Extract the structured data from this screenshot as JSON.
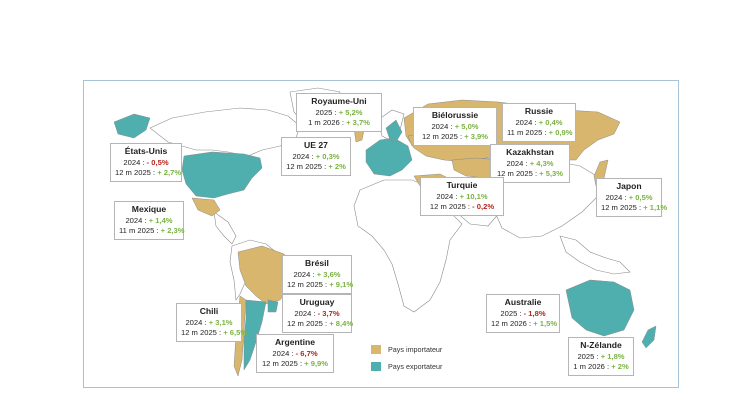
{
  "colors": {
    "importer": "#d8b66e",
    "exporter": "#4eafae",
    "land": "#ffffff",
    "border": "#8c8c8c",
    "frame": "#a9c3d6",
    "positive": "#7ab342",
    "negative": "#b8241c"
  },
  "legend": {
    "importer": "Pays importateur",
    "exporter": "Pays exportateur"
  },
  "labels": {
    "uk": {
      "name": "Royaume-Uni",
      "l1": "2025 : ",
      "v1": "+ 5,2%",
      "l2": "1 m 2026 : ",
      "v2": "+ 3,7%"
    },
    "by": {
      "name": "Biélorussie",
      "l1": "2024 : ",
      "v1": "+ 5,0%",
      "l2": "12 m 2025 : ",
      "v2": "+ 3,9%"
    },
    "ru": {
      "name": "Russie",
      "l1": "2024 : ",
      "v1": "+ 0,4%",
      "l2": "11 m 2025 : ",
      "v2": "+ 0,9%"
    },
    "us": {
      "name": "États-Unis",
      "l1": "2024 : ",
      "v1": "- 0,5%",
      "l2": "12 m 2025 : ",
      "v2": "+ 2,7%"
    },
    "eu": {
      "name": "UE 27",
      "l1": "2024 : ",
      "v1": "+ 0,3%",
      "l2": "12 m 2025 : ",
      "v2": "+ 2%"
    },
    "kz": {
      "name": "Kazakhstan",
      "l1": "2024 : ",
      "v1": "+ 4,3%",
      "l2": "12 m 2025 : ",
      "v2": "+ 5,3%"
    },
    "tr": {
      "name": "Turquie",
      "l1": "2024 : ",
      "v1": "+ 10,1%",
      "l2": "12 m 2025 : ",
      "v2": "- 0,2%"
    },
    "jp": {
      "name": "Japon",
      "l1": "2024 : ",
      "v1": "+ 0,5%",
      "l2": "12 m 2025 : ",
      "v2": "+ 1,1%"
    },
    "mx": {
      "name": "Mexique",
      "l1": "2024 : ",
      "v1": "+ 1,4%",
      "l2": "11 m 2025 : ",
      "v2": "+ 2,3%"
    },
    "br": {
      "name": "Brésil",
      "l1": "2024 : ",
      "v1": "+ 3,6%",
      "l2": "12 m 2025 : ",
      "v2": "+ 9,1%"
    },
    "uy": {
      "name": "Uruguay",
      "l1": "2024 : ",
      "v1": "- 3,7%",
      "l2": "12 m 2025 : ",
      "v2": "+ 8,4%"
    },
    "cl": {
      "name": "Chili",
      "l1": "2024 : ",
      "v1": "+ 3,1%",
      "l2": "12 m 2025 : ",
      "v2": "+ 6,5%"
    },
    "ar": {
      "name": "Argentine",
      "l1": "2024 : ",
      "v1": "- 6,7%",
      "l2": "12 m 2025 : ",
      "v2": "+ 9,9%"
    },
    "au": {
      "name": "Australie",
      "l1": "2025 : ",
      "v1": "- 1,8%",
      "l2": "12 m 2026 : ",
      "v2": "+ 1,5%"
    },
    "nz": {
      "name": "N-Zélande",
      "l1": "2025 : ",
      "v1": "+ 1,8%",
      "l2": "1 m 2026 : ",
      "v2": "+ 2%"
    }
  }
}
